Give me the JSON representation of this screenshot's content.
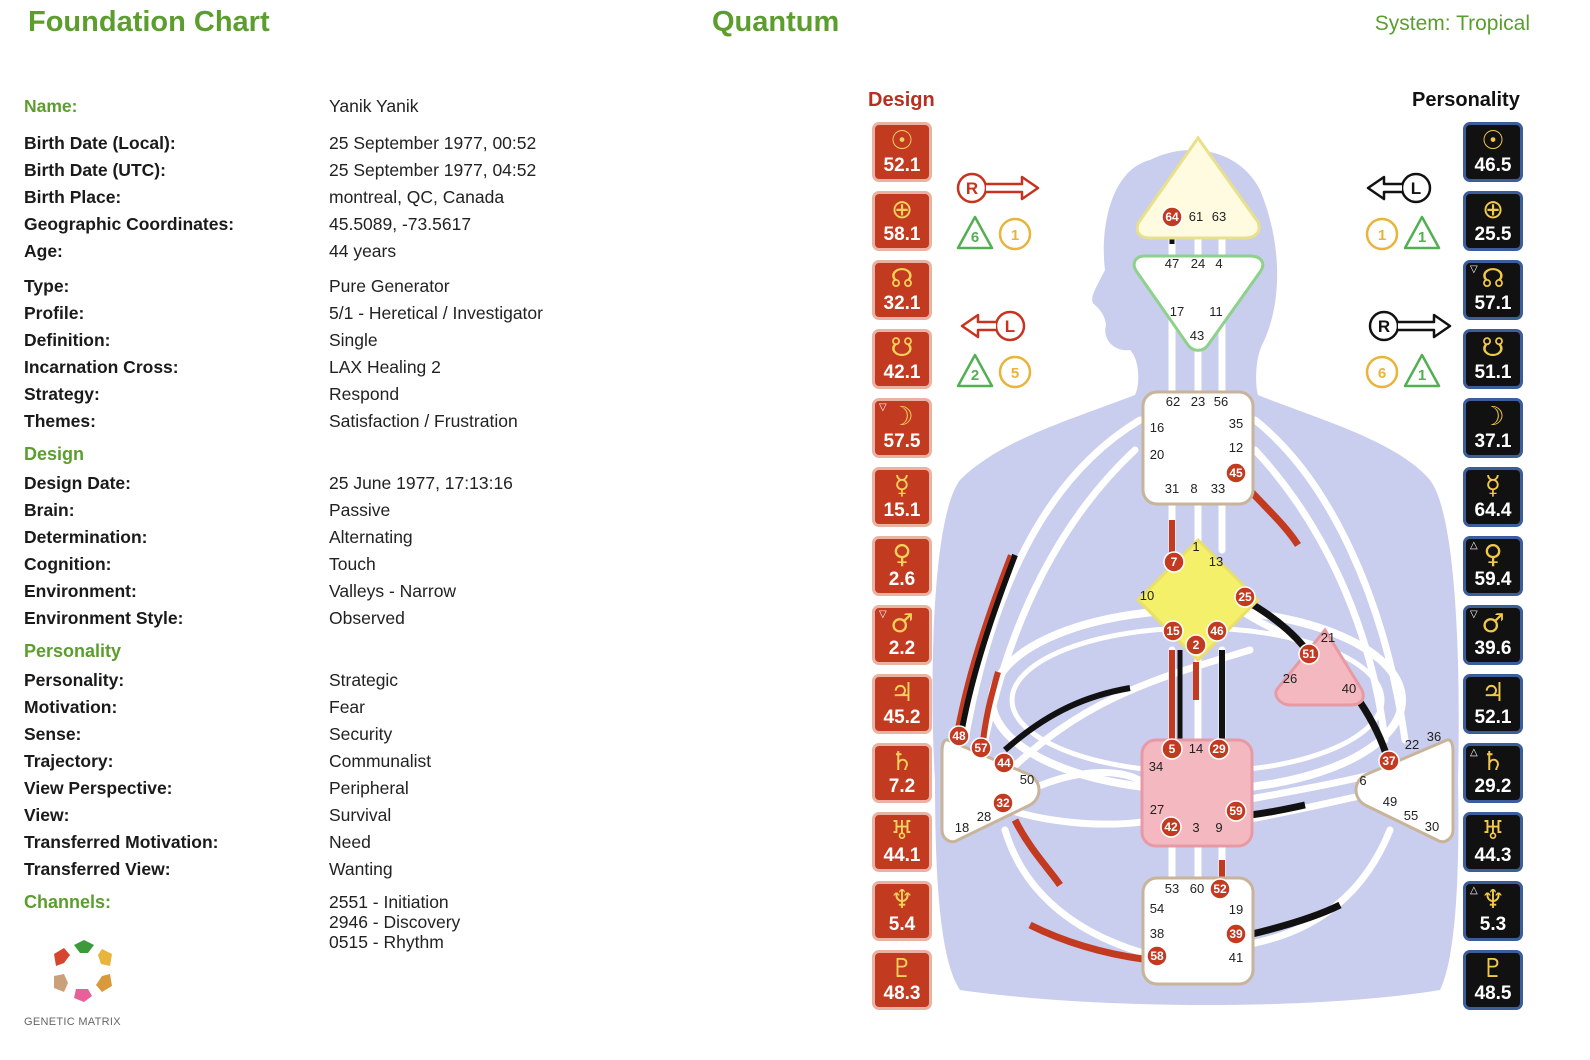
{
  "header": {
    "title_left": "Foundation Chart",
    "title_center": "Quantum",
    "system": "System: Tropical"
  },
  "info": {
    "name": {
      "label": "Name:",
      "value": "Yanik Yanik"
    },
    "rows_general": [
      {
        "label": "Birth Date (Local):",
        "value": "25 September 1977, 00:52"
      },
      {
        "label": "Birth Date (UTC):",
        "value": "25 September 1977, 04:52"
      },
      {
        "label": "Birth Place:",
        "value": "montreal, QC, Canada"
      },
      {
        "label": "Geographic Coordinates:",
        "value": "45.5089, -73.5617"
      },
      {
        "label": "Age:",
        "value": "44 years"
      }
    ],
    "rows_type": [
      {
        "label": "Type:",
        "value": "Pure Generator"
      },
      {
        "label": "Profile:",
        "value": "5/1 - Heretical / Investigator"
      },
      {
        "label": "Definition:",
        "value": "Single"
      },
      {
        "label": "Incarnation Cross:",
        "value": "LAX Healing 2"
      },
      {
        "label": "Strategy:",
        "value": "Respond"
      },
      {
        "label": "Themes:",
        "value": "Satisfaction / Frustration"
      }
    ],
    "design_heading": "Design",
    "rows_design": [
      {
        "label": "Design Date:",
        "value": "25 June 1977, 17:13:16"
      },
      {
        "label": "Brain:",
        "value": "Passive"
      },
      {
        "label": "Determination:",
        "value": "Alternating"
      },
      {
        "label": "Cognition:",
        "value": "Touch"
      },
      {
        "label": "Environment:",
        "value": "Valleys - Narrow"
      },
      {
        "label": "Environment Style:",
        "value": "Observed"
      }
    ],
    "personality_heading": "Personality",
    "rows_personality": [
      {
        "label": "Personality:",
        "value": "Strategic"
      },
      {
        "label": "Motivation:",
        "value": "Fear"
      },
      {
        "label": "Sense:",
        "value": "Security"
      },
      {
        "label": "Trajectory:",
        "value": "Communalist"
      },
      {
        "label": "View Perspective:",
        "value": "Peripheral"
      },
      {
        "label": "View:",
        "value": "Survival"
      },
      {
        "label": "Transferred Motivation:",
        "value": "Need"
      },
      {
        "label": "Transferred View:",
        "value": "Wanting"
      }
    ],
    "channels_heading": "Channels:",
    "channels": [
      "2551 - Initiation",
      "2946 - Discovery",
      "0515 - Rhythm"
    ]
  },
  "logo_text": "GENETIC MATRIX",
  "columns": {
    "design_title": "Design",
    "personality_title": "Personality"
  },
  "design_planets": [
    {
      "symbol": "☉",
      "value": "52.1",
      "mark": "",
      "icon": "sun-icon"
    },
    {
      "symbol": "⊕",
      "value": "58.1",
      "mark": "",
      "icon": "earth-icon"
    },
    {
      "symbol": "☊",
      "value": "32.1",
      "mark": "",
      "icon": "north-node-icon"
    },
    {
      "symbol": "☋",
      "value": "42.1",
      "mark": "",
      "icon": "south-node-icon"
    },
    {
      "symbol": "☽",
      "value": "57.5",
      "mark": "▽",
      "icon": "moon-icon"
    },
    {
      "symbol": "☿",
      "value": "15.1",
      "mark": "",
      "icon": "mercury-icon"
    },
    {
      "symbol": "♀",
      "value": "2.6",
      "mark": "",
      "icon": "venus-icon"
    },
    {
      "symbol": "♂",
      "value": "2.2",
      "mark": "▽",
      "icon": "mars-icon"
    },
    {
      "symbol": "♃",
      "value": "45.2",
      "mark": "",
      "icon": "jupiter-icon"
    },
    {
      "symbol": "♄",
      "value": "7.2",
      "mark": "",
      "icon": "saturn-icon"
    },
    {
      "symbol": "♅",
      "value": "44.1",
      "mark": "",
      "icon": "uranus-icon"
    },
    {
      "symbol": "♆",
      "value": "5.4",
      "mark": "",
      "icon": "neptune-icon"
    },
    {
      "symbol": "♇",
      "value": "48.3",
      "mark": "",
      "icon": "pluto-icon"
    }
  ],
  "personality_planets": [
    {
      "symbol": "☉",
      "value": "46.5",
      "mark": "",
      "icon": "sun-icon"
    },
    {
      "symbol": "⊕",
      "value": "25.5",
      "mark": "",
      "icon": "earth-icon"
    },
    {
      "symbol": "☊",
      "value": "57.1",
      "mark": "▽",
      "icon": "north-node-icon"
    },
    {
      "symbol": "☋",
      "value": "51.1",
      "mark": "",
      "icon": "south-node-icon"
    },
    {
      "symbol": "☽",
      "value": "37.1",
      "mark": "",
      "icon": "moon-icon"
    },
    {
      "symbol": "☿",
      "value": "64.4",
      "mark": "",
      "icon": "mercury-icon"
    },
    {
      "symbol": "♀",
      "value": "59.4",
      "mark": "△",
      "icon": "venus-icon"
    },
    {
      "symbol": "♂",
      "value": "39.6",
      "mark": "▽",
      "icon": "mars-icon"
    },
    {
      "symbol": "♃",
      "value": "52.1",
      "mark": "",
      "icon": "jupiter-icon"
    },
    {
      "symbol": "♄",
      "value": "29.2",
      "mark": "△",
      "icon": "saturn-icon"
    },
    {
      "symbol": "♅",
      "value": "44.3",
      "mark": "",
      "icon": "uranus-icon"
    },
    {
      "symbol": "♆",
      "value": "5.3",
      "mark": "△",
      "icon": "neptune-icon"
    },
    {
      "symbol": "♇",
      "value": "48.5",
      "mark": "",
      "icon": "pluto-icon"
    }
  ],
  "variables": {
    "design_top": {
      "letter": "R",
      "color": "#c8321e",
      "tone": "6",
      "color_num": "1"
    },
    "design_bottom": {
      "letter": "L",
      "color": "#c8321e",
      "tone": "2",
      "color_num": "5"
    },
    "personality_top": {
      "letter": "L",
      "color": "#111111",
      "tone": "1",
      "color_num": "1"
    },
    "personality_bottom": {
      "letter": "R",
      "color": "#111111",
      "tone": "1",
      "color_num": "6"
    }
  },
  "colors": {
    "accent_green": "#5c9e2e",
    "design_red": "#c23a20",
    "personality_black": "#111111",
    "body_blue": "#c9cdee",
    "head_center": "#fffbe0",
    "g_center": "#f5f06a",
    "sacral_center": "#f4b9c0",
    "ego_center": "#f4b9c0"
  },
  "bodygraph": {
    "head": {
      "gates": [
        "64",
        "61",
        "63"
      ],
      "active": [
        "64"
      ]
    },
    "ajna": {
      "gates": [
        "47",
        "24",
        "4",
        "17",
        "11",
        "43"
      ],
      "active": []
    },
    "throat": {
      "gates": [
        "62",
        "23",
        "56",
        "16",
        "35",
        "20",
        "12",
        "31",
        "8",
        "33",
        "45"
      ],
      "active": [
        "45"
      ]
    },
    "g": {
      "gates": [
        "1",
        "13",
        "10",
        "25",
        "7",
        "15",
        "46",
        "2"
      ],
      "active": [
        "7",
        "25",
        "15",
        "46",
        "2"
      ]
    },
    "ego": {
      "gates": [
        "21",
        "51",
        "26",
        "40"
      ],
      "active": [
        "51"
      ]
    },
    "spleen": {
      "gates": [
        "48",
        "57",
        "44",
        "50",
        "32",
        "28",
        "18"
      ],
      "active": [
        "48",
        "57",
        "44",
        "32"
      ]
    },
    "sacral": {
      "gates": [
        "5",
        "14",
        "29",
        "34",
        "27",
        "59",
        "42",
        "3",
        "9"
      ],
      "active": [
        "5",
        "29",
        "59",
        "42"
      ]
    },
    "solar": {
      "gates": [
        "36",
        "22",
        "37",
        "6",
        "49",
        "55",
        "30"
      ],
      "active": [
        "37"
      ]
    },
    "root": {
      "gates": [
        "53",
        "60",
        "52",
        "54",
        "19",
        "38",
        "39",
        "58",
        "41"
      ],
      "active": [
        "52",
        "39",
        "58"
      ]
    }
  }
}
